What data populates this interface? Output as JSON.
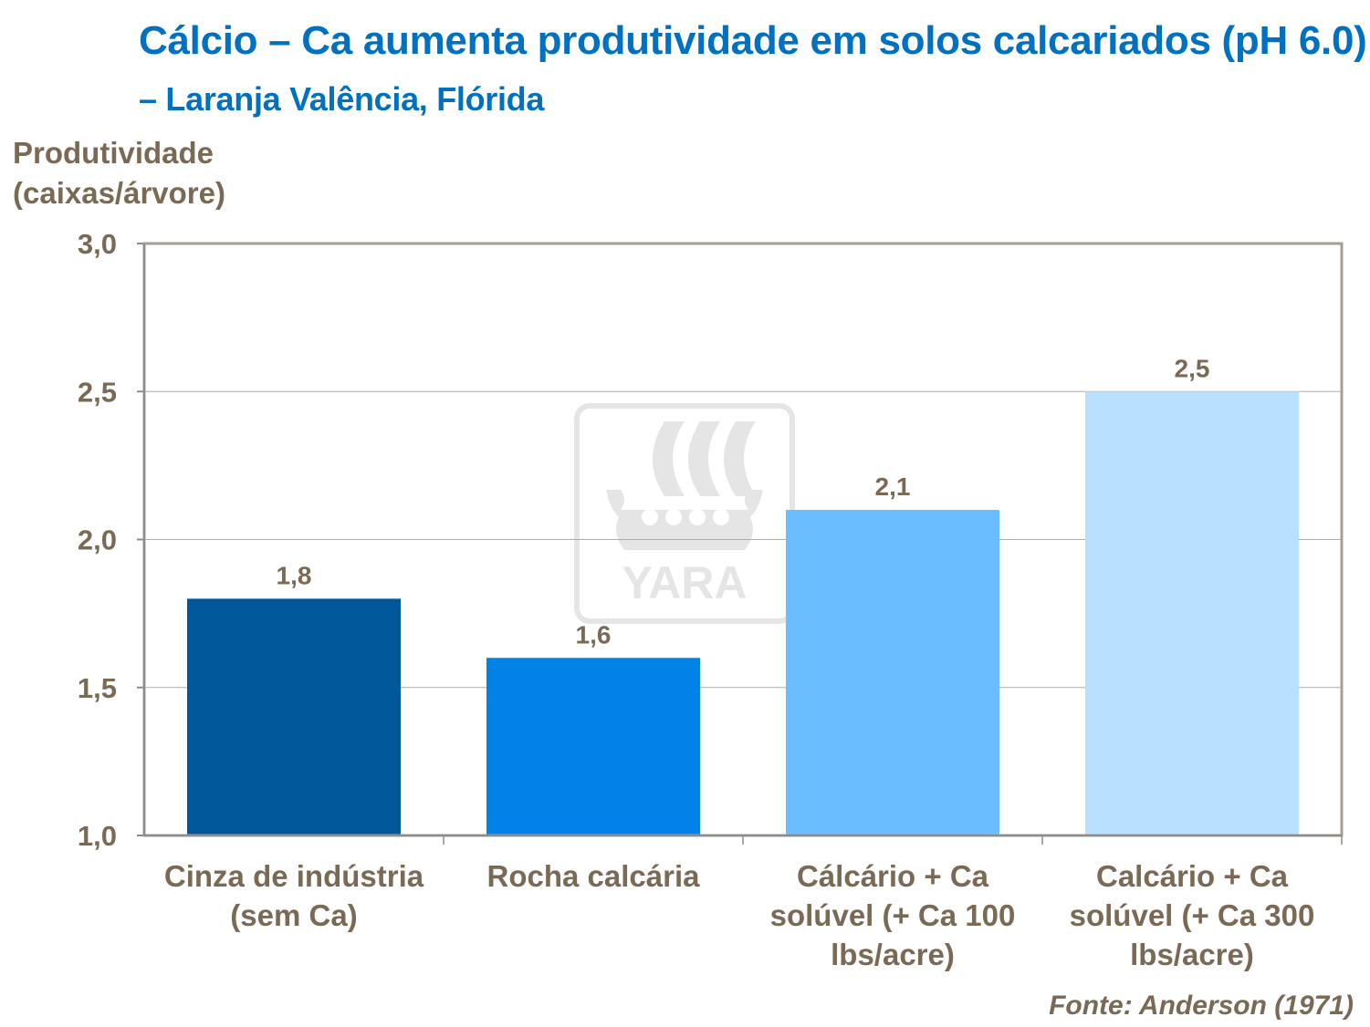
{
  "chart_data": {
    "type": "bar",
    "title": "Cálcio – Ca aumenta produtividade em solos calcariados (pH 6.0)",
    "subtitle": "– Laranja Valência, Flórida",
    "ylabel_line1": "Produtividade",
    "ylabel_line2": "(caixas/árvore)",
    "xlabel": "",
    "categories": [
      [
        "Cinza de indústria",
        "(sem Ca)"
      ],
      [
        "Rocha calcária"
      ],
      [
        "Cálcário + Ca",
        "solúvel (+ Ca 100",
        "lbs/acre)"
      ],
      [
        "Calcário + Ca",
        "solúvel (+ Ca 300",
        "lbs/acre)"
      ]
    ],
    "values": [
      1.8,
      1.6,
      2.1,
      2.5
    ],
    "data_labels": [
      "1,8",
      "1,6",
      "2,1",
      "2,5"
    ],
    "bar_colors": [
      "#00579A",
      "#0082E6",
      "#69BEFF",
      "#B9E0FF"
    ],
    "ylim": [
      1.0,
      3.0
    ],
    "yticks": [
      1.0,
      1.5,
      2.0,
      2.5,
      3.0
    ],
    "ytick_labels": [
      "1,0",
      "1,5",
      "2,0",
      "2,5",
      "3,0"
    ],
    "grid": true,
    "legend": "none",
    "source": "Fonte: Anderson (1971)",
    "watermark": "YARA",
    "title_color": "#0070C0",
    "text_color": "#7A6A55"
  }
}
